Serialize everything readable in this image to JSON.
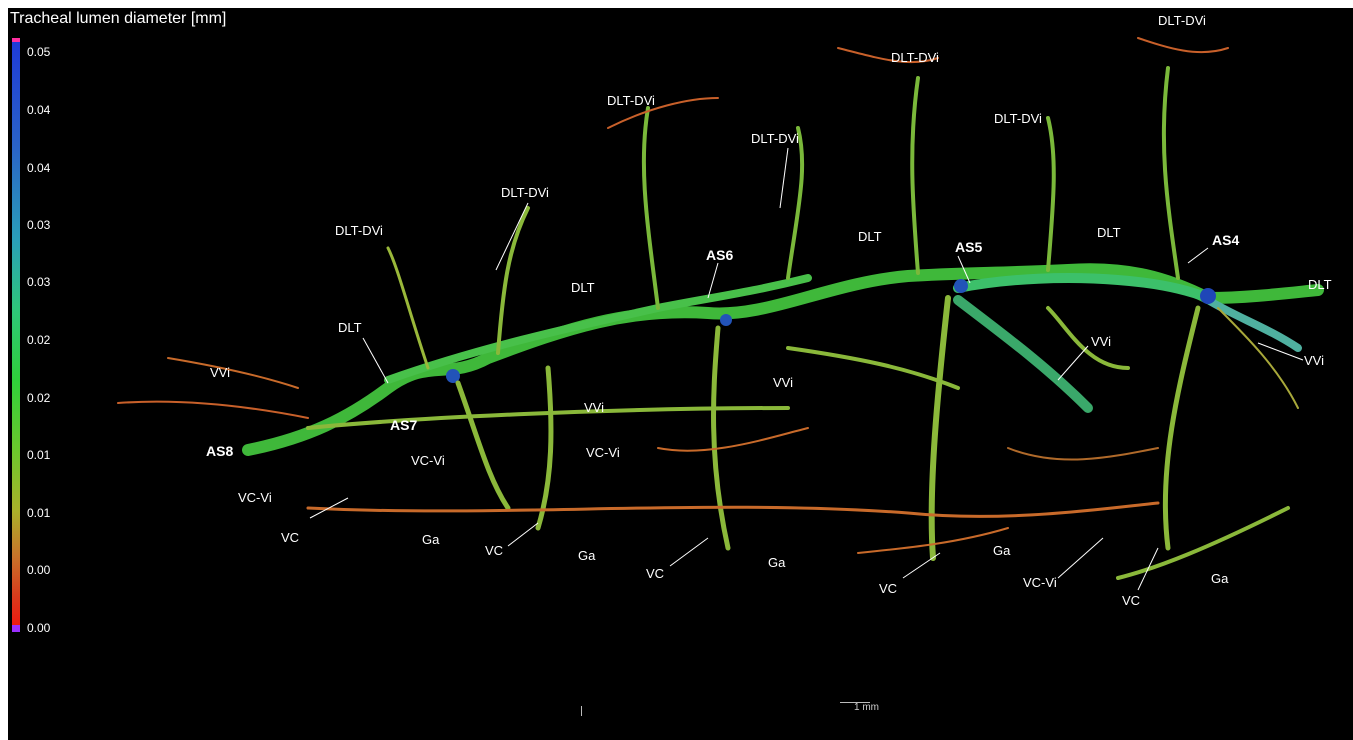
{
  "legend": {
    "title": "Tracheal lumen diameter [mm]",
    "ticks": [
      "0.05",
      "0.04",
      "0.04",
      "0.03",
      "0.03",
      "0.02",
      "0.02",
      "0.01",
      "0.01",
      "0.00",
      "0.00"
    ],
    "gradient_colors": [
      "#1f3bd6",
      "#2a9fb8",
      "#2fd03a",
      "#a8b22a",
      "#d83a1c"
    ],
    "max_color": "#ff2fa0",
    "min_color": "#9a2fff"
  },
  "labels": {
    "dlt_dvi_1": "DLT-DVi",
    "dlt_dvi_2": "DLT-DVi",
    "dlt_dvi_3": "DLT-DVi",
    "dlt_dvi_4": "DLT-DVi",
    "dlt_dvi_5": "DLT-DVi",
    "dlt_dvi_6": "DLT-DVi",
    "dlt_dvi_7": "DLT-DVi",
    "dlt_1": "DLT",
    "dlt_2": "DLT",
    "dlt_3": "DLT",
    "dlt_4": "DLT",
    "dlt_5": "DLT",
    "as4": "AS4",
    "as5": "AS5",
    "as6": "AS6",
    "as7": "AS7",
    "as8": "AS8",
    "vvi_1": "VVi",
    "vvi_2": "VVi",
    "vvi_3": "VVi",
    "vvi_4": "VVi",
    "vvi_5": "VVi",
    "vc_vi_1": "VC-Vi",
    "vc_vi_2": "VC-Vi",
    "vc_vi_3": "VC-Vi",
    "vc_vi_4": "VC-Vi",
    "vc_1": "VC",
    "vc_2": "VC",
    "vc_3": "VC",
    "vc_4": "VC",
    "vc_5": "VC",
    "ga_1": "Ga",
    "ga_2": "Ga",
    "ga_3": "Ga",
    "ga_4": "Ga"
  },
  "scale_bar": {
    "label": "1 mm"
  }
}
